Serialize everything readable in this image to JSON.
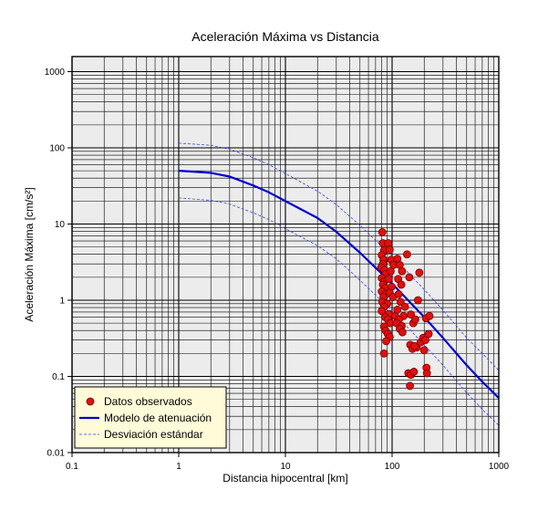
{
  "chart_data": {
    "type": "scatter",
    "title": "Aceleración Máxima vs Distancia",
    "xlabel": "Distancia hipocentral [km]",
    "ylabel": "Aceleración Máxima [cm/s²]",
    "xscale": "log",
    "yscale": "log",
    "xlim": [
      0.1,
      1000
    ],
    "ylim": [
      0.01,
      2000
    ],
    "grid": true,
    "legend_position": "bottom-left",
    "x_ticks": [
      "0.1",
      "1",
      "10",
      "100",
      "1000"
    ],
    "y_ticks": [
      "0.01",
      "0.1",
      "1",
      "10",
      "100",
      "1000"
    ],
    "colors": {
      "plot_background": "#ececec",
      "grid": "#000000",
      "points": "#dd1111",
      "point_edge": "#7a0000",
      "model": "#0000cc",
      "deviation": "#3344ee",
      "legend_background": "#fffbd8"
    },
    "series": [
      {
        "name": "Datos observados",
        "kind": "scatter",
        "points": [
          [
            81,
            7.8
          ],
          [
            82,
            5.6
          ],
          [
            84,
            4.5
          ],
          [
            80,
            3.9
          ],
          [
            83,
            3.4
          ],
          [
            82,
            3.0
          ],
          [
            79,
            2.7
          ],
          [
            85,
            2.5
          ],
          [
            87,
            2.2
          ],
          [
            80,
            1.95
          ],
          [
            84,
            1.75
          ],
          [
            82,
            1.6
          ],
          [
            86,
            1.45
          ],
          [
            80,
            1.3
          ],
          [
            88,
            1.2
          ],
          [
            83,
            1.1
          ],
          [
            81,
            0.95
          ],
          [
            90,
            0.9
          ],
          [
            84,
            0.82
          ],
          [
            80,
            0.72
          ],
          [
            93,
            0.66
          ],
          [
            86,
            0.6
          ],
          [
            91,
            0.56
          ],
          [
            96,
            0.5
          ],
          [
            84,
            0.45
          ],
          [
            87,
            0.4
          ],
          [
            91,
            0.36
          ],
          [
            95,
            0.33
          ],
          [
            88,
            0.29
          ],
          [
            84,
            0.2
          ],
          [
            92,
            5.6
          ],
          [
            95,
            4.6
          ],
          [
            98,
            3.4
          ],
          [
            103,
            2.9
          ],
          [
            97,
            2.4
          ],
          [
            93,
            1.9
          ],
          [
            99,
            1.5
          ],
          [
            95,
            1.25
          ],
          [
            102,
            1.1
          ],
          [
            107,
            0.62
          ],
          [
            112,
            3.5
          ],
          [
            118,
            2.9
          ],
          [
            124,
            2.4
          ],
          [
            114,
            1.9
          ],
          [
            122,
            1.6
          ],
          [
            115,
            1.2
          ],
          [
            120,
            0.95
          ],
          [
            112,
            0.75
          ],
          [
            128,
            0.62
          ],
          [
            116,
            0.56
          ],
          [
            110,
            0.5
          ],
          [
            123,
            0.46
          ],
          [
            118,
            0.42
          ],
          [
            125,
            0.38
          ],
          [
            132,
            0.82
          ],
          [
            138,
            4.0
          ],
          [
            145,
            2.0
          ],
          [
            150,
            0.65
          ],
          [
            158,
            0.5
          ],
          [
            165,
            0.56
          ],
          [
            170,
            0.24
          ],
          [
            175,
            1.0
          ],
          [
            180,
            2.3
          ],
          [
            148,
            0.26
          ],
          [
            155,
            0.23
          ],
          [
            162,
            0.25
          ],
          [
            185,
            0.28
          ],
          [
            195,
            0.32
          ],
          [
            200,
            0.22
          ],
          [
            205,
            0.3
          ],
          [
            210,
            0.13
          ],
          [
            212,
            0.11
          ],
          [
            208,
            0.58
          ],
          [
            224,
            0.62
          ],
          [
            220,
            0.36
          ],
          [
            142,
            0.11
          ],
          [
            150,
            0.105
          ],
          [
            160,
            0.115
          ],
          [
            147,
            0.075
          ]
        ]
      },
      {
        "name": "Modelo de atenuación",
        "kind": "line",
        "points": [
          [
            1,
            50
          ],
          [
            2,
            47
          ],
          [
            3,
            42
          ],
          [
            5,
            32
          ],
          [
            7,
            26
          ],
          [
            10,
            20
          ],
          [
            20,
            12
          ],
          [
            30,
            7.9
          ],
          [
            50,
            4.2
          ],
          [
            100,
            1.65
          ],
          [
            200,
            0.6
          ],
          [
            300,
            0.32
          ],
          [
            500,
            0.14
          ],
          [
            700,
            0.085
          ],
          [
            1000,
            0.052
          ]
        ]
      },
      {
        "name": "Desviación estándar",
        "kind": "dashed",
        "points": [
          [
            1,
            115
          ],
          [
            2,
            108
          ],
          [
            3,
            96
          ],
          [
            5,
            74
          ],
          [
            7,
            60
          ],
          [
            10,
            46
          ],
          [
            20,
            27
          ],
          [
            30,
            18
          ],
          [
            50,
            9.6
          ],
          [
            100,
            3.8
          ],
          [
            200,
            1.38
          ],
          [
            300,
            0.74
          ],
          [
            500,
            0.32
          ],
          [
            700,
            0.2
          ],
          [
            1000,
            0.12
          ]
        ]
      },
      {
        "kind": "dashed",
        "points": [
          [
            1,
            22
          ],
          [
            2,
            20.5
          ],
          [
            3,
            18.3
          ],
          [
            5,
            14
          ],
          [
            7,
            11.4
          ],
          [
            10,
            8.7
          ],
          [
            20,
            5.2
          ],
          [
            30,
            3.5
          ],
          [
            50,
            1.83
          ],
          [
            100,
            0.72
          ],
          [
            200,
            0.26
          ],
          [
            300,
            0.14
          ],
          [
            500,
            0.061
          ],
          [
            700,
            0.037
          ],
          [
            1000,
            0.0228
          ]
        ]
      }
    ]
  }
}
